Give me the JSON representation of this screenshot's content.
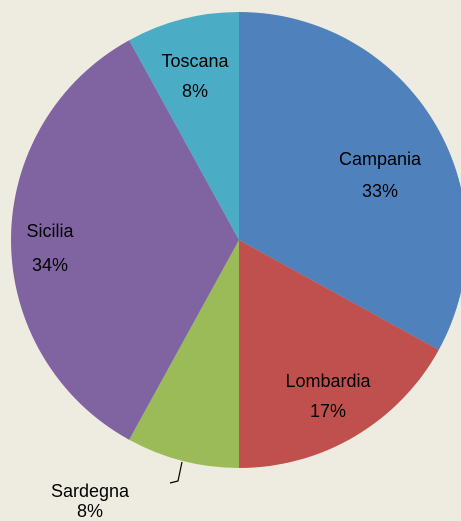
{
  "chart_data": {
    "type": "pie",
    "categories": [
      "Campania",
      "Lombardia",
      "Sardegna",
      "Sicilia",
      "Toscana"
    ],
    "values": [
      33,
      17,
      8,
      34,
      8
    ],
    "value_labels": [
      "33%",
      "17%",
      "8%",
      "34%",
      "8%"
    ],
    "colors": [
      "#4f81bd",
      "#c0504d",
      "#9bbb59",
      "#8064a2",
      "#4bacc6"
    ]
  }
}
